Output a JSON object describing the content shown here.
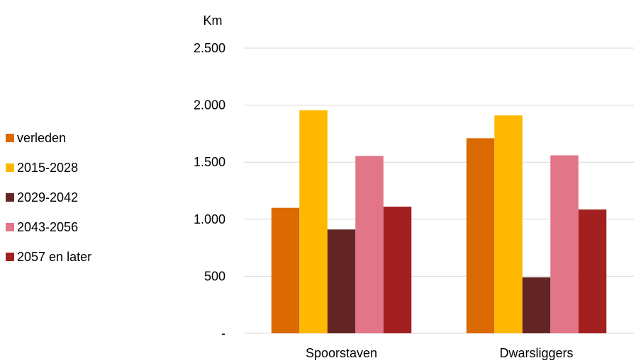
{
  "chart_data": {
    "type": "bar",
    "ylabel": "Km",
    "ylim": [
      0,
      2500
    ],
    "yticks": [
      {
        "value": 0,
        "label": "-"
      },
      {
        "value": 500,
        "label": "500"
      },
      {
        "value": 1000,
        "label": "1.000"
      },
      {
        "value": 1500,
        "label": "1.500"
      },
      {
        "value": 2000,
        "label": "2.000"
      },
      {
        "value": 2500,
        "label": "2.500"
      }
    ],
    "grid": true,
    "legend_position": "left",
    "categories": [
      "Spoorstaven",
      "Dwarsliggers"
    ],
    "series": [
      {
        "name": "verleden",
        "color": "#DB6A00",
        "values": [
          1100,
          1710
        ]
      },
      {
        "name": "2015-2028",
        "color": "#FFB800",
        "values": [
          1955,
          1910
        ]
      },
      {
        "name": "2029-2042",
        "color": "#632523",
        "values": [
          910,
          490
        ]
      },
      {
        "name": "2043-2056",
        "color": "#E27588",
        "values": [
          1555,
          1560
        ]
      },
      {
        "name": "2057 en later",
        "color": "#A32020",
        "values": [
          1110,
          1085
        ]
      }
    ]
  }
}
